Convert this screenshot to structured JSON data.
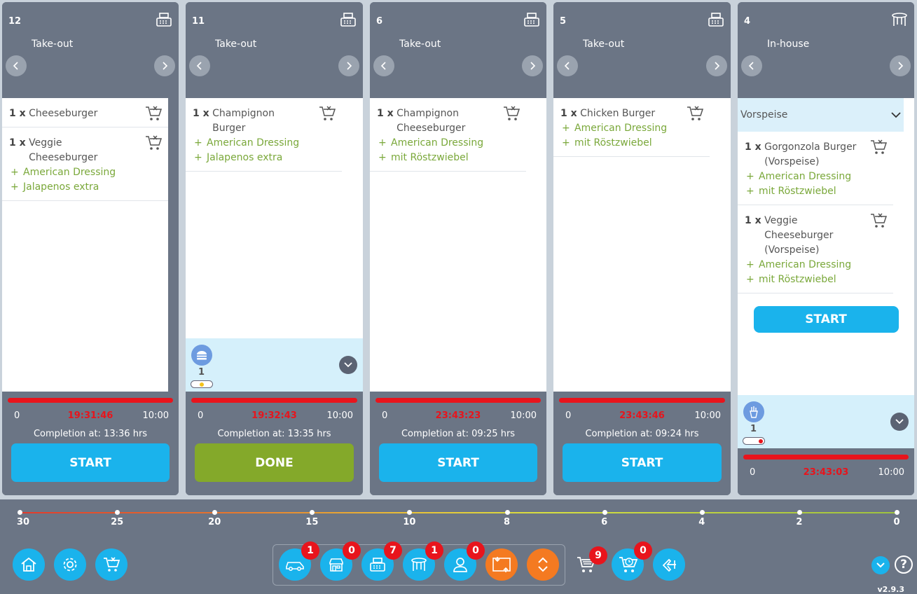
{
  "orders": [
    {
      "number": "12",
      "type": "Take-out",
      "icon": "cash-register-icon",
      "items": [
        {
          "qty": "1 x",
          "name": "Cheeseburger",
          "mods": []
        },
        {
          "qty": "1 x",
          "name": "Veggie Cheeseburger",
          "mods": [
            "American Dressing",
            "Jalapenos extra"
          ]
        }
      ],
      "times": {
        "start": "0",
        "elapsed": "19:31:46",
        "end": "10:00"
      },
      "completion": "Completion at: 13:36 hrs",
      "button": "START"
    },
    {
      "number": "11",
      "type": "Take-out",
      "icon": "cash-register-icon",
      "items": [
        {
          "qty": "1 x",
          "name": "Champignon Burger",
          "mods": [
            "American Dressing",
            "Jalapenos extra"
          ]
        }
      ],
      "station": {
        "count": "1",
        "icon": "burger-icon",
        "status_color": "#f3c21b"
      },
      "times": {
        "start": "0",
        "elapsed": "19:32:43",
        "end": "10:00"
      },
      "completion": "Completion at: 13:35 hrs",
      "button": "DONE"
    },
    {
      "number": "6",
      "type": "Take-out",
      "icon": "cash-register-icon",
      "items": [
        {
          "qty": "1 x",
          "name": "Champignon Cheeseburger",
          "mods": [
            "American Dressing",
            "mit Röstzwiebel"
          ]
        }
      ],
      "times": {
        "start": "0",
        "elapsed": "23:43:23",
        "end": "10:00"
      },
      "completion": "Completion at: 09:25 hrs",
      "button": "START"
    },
    {
      "number": "5",
      "type": "Take-out",
      "icon": "cash-register-icon",
      "items": [
        {
          "qty": "1 x",
          "name": "Chicken Burger",
          "mods": [
            "American Dressing",
            "mit Röstzwiebel"
          ]
        }
      ],
      "times": {
        "start": "0",
        "elapsed": "23:43:46",
        "end": "10:00"
      },
      "completion": "Completion at: 09:24 hrs",
      "button": "START"
    },
    {
      "number": "4",
      "type": "In-house",
      "icon": "table-icon",
      "group": "Vorspeise",
      "items": [
        {
          "qty": "1 x",
          "name": "Gorgonzola Burger (Vorspeise)",
          "mods": [
            "American Dressing",
            "mit Röstzwiebel"
          ]
        },
        {
          "qty": "1 x",
          "name": "Veggie Cheeseburger (Vorspeise)",
          "mods": [
            "American Dressing",
            "mit Röstzwiebel"
          ]
        }
      ],
      "group_button": "START",
      "station": {
        "count": "1",
        "icon": "fries-icon",
        "status_color": "#e8141c"
      },
      "times": {
        "start": "0",
        "elapsed": "23:43:03",
        "end": "10:00"
      }
    }
  ],
  "timeline": [
    "30",
    "25",
    "20",
    "15",
    "10",
    "8",
    "6",
    "4",
    "2",
    "0"
  ],
  "bottom_bar": {
    "left_buttons": [
      "home-icon",
      "settings-icon",
      "cancelled-cart-icon"
    ],
    "filters": [
      {
        "icon": "car-icon",
        "badge": "1"
      },
      {
        "icon": "store-icon",
        "badge": "0"
      },
      {
        "icon": "cash-register-icon",
        "badge": "7"
      },
      {
        "icon": "table-icon",
        "badge": "1"
      },
      {
        "icon": "person-icon",
        "badge": "0"
      }
    ],
    "cart_badge": "9",
    "scheduled_cart_badge": "0",
    "version": "v2.9.3",
    "help": "?"
  },
  "colors": {
    "accent": "#1ab3ec",
    "done": "#84a92a",
    "alert": "#e8141c",
    "modifier": "#7aa83a",
    "orange": "#f47a21"
  }
}
